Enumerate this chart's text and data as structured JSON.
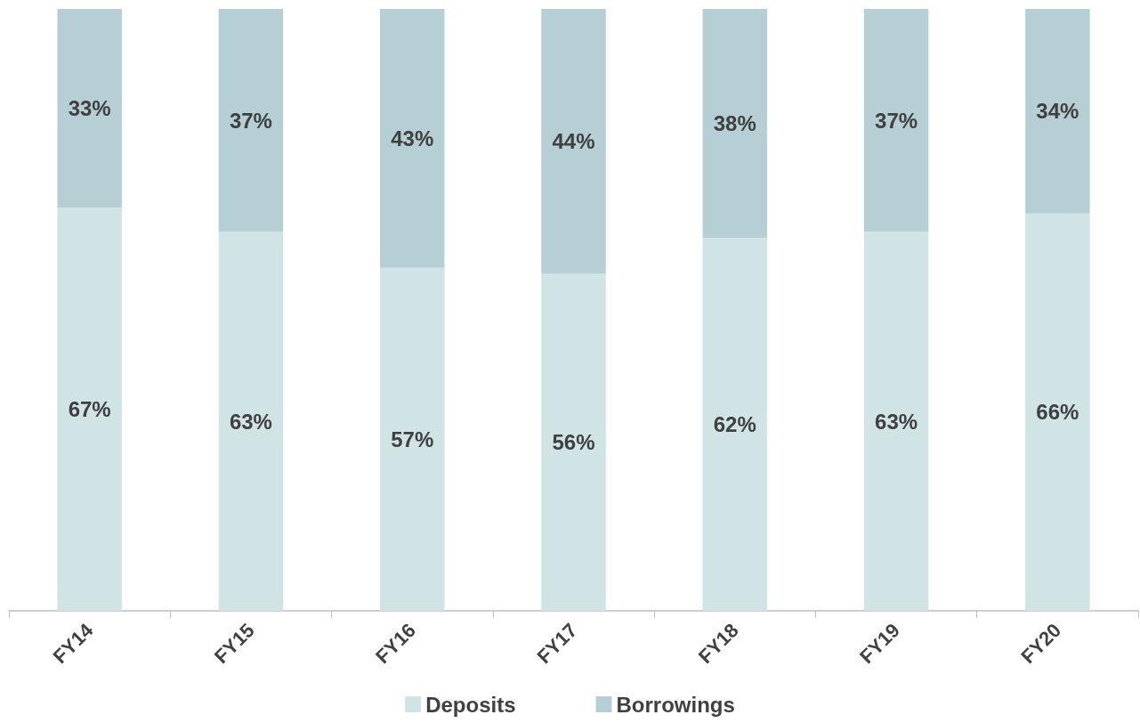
{
  "chart_data": {
    "type": "bar",
    "stacked": true,
    "categories": [
      "FY14",
      "FY15",
      "FY16",
      "FY17",
      "FY18",
      "FY19",
      "FY20"
    ],
    "series": [
      {
        "name": "Deposits",
        "color": "#d0e3e5",
        "values": [
          67,
          63,
          57,
          56,
          62,
          63,
          66
        ],
        "value_labels": [
          "67%",
          "63%",
          "57%",
          "56%",
          "62%",
          "63%",
          "66%"
        ]
      },
      {
        "name": "Borrowings",
        "color": "#b5cfd5",
        "values": [
          33,
          37,
          43,
          44,
          38,
          37,
          34
        ],
        "value_labels": [
          "33%",
          "37%",
          "43%",
          "44%",
          "38%",
          "37%",
          "34%"
        ]
      }
    ],
    "legend": "bottom",
    "grid": false,
    "tick_labels": "x"
  }
}
